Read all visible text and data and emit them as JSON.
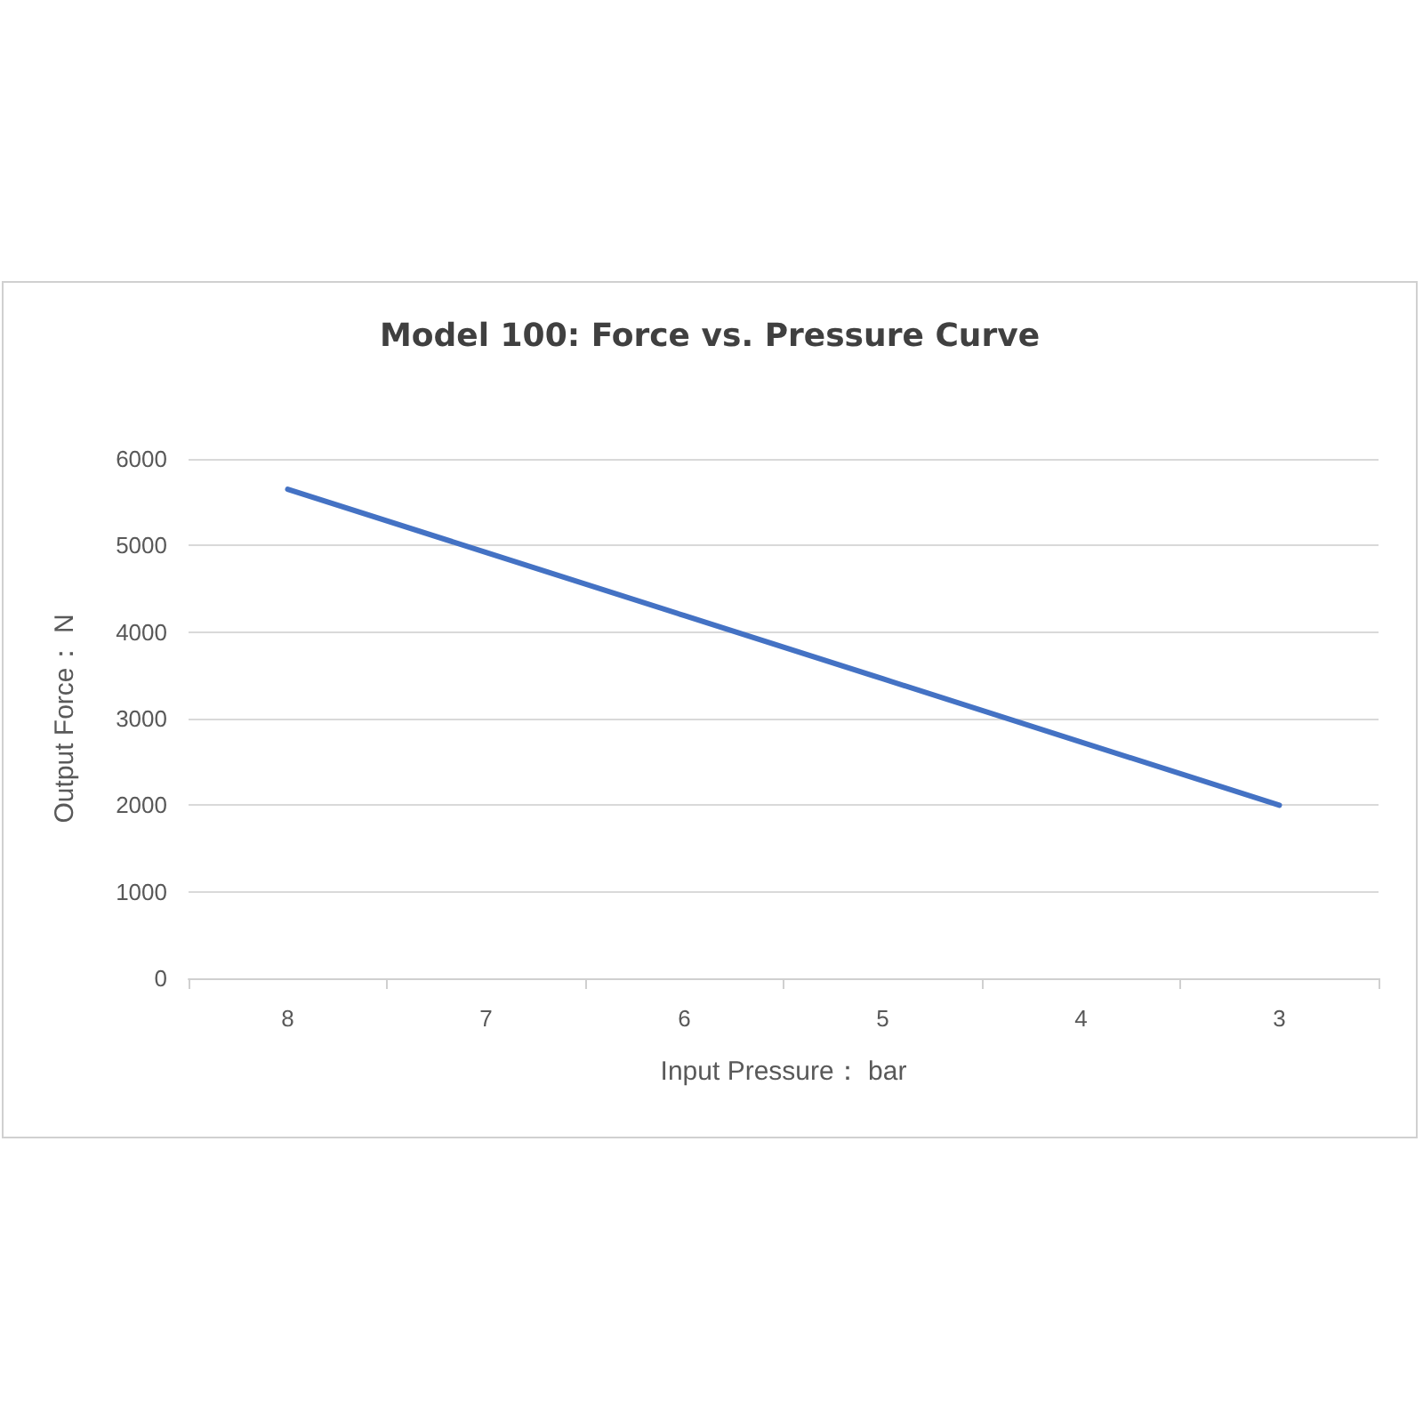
{
  "chart_data": {
    "type": "line",
    "title": "Model 100: Force vs. Pressure Curve",
    "xlabel": "Input Pressure： bar",
    "ylabel": "Output Force： N",
    "categories": [
      "8",
      "7",
      "6",
      "5",
      "4",
      "3"
    ],
    "series": [
      {
        "color": "#4472c4",
        "values": [
          5650,
          4920,
          4190,
          3460,
          2730,
          2000
        ]
      }
    ],
    "ylim": [
      0,
      6000
    ],
    "yticks": [
      0,
      1000,
      2000,
      3000,
      4000,
      5000,
      6000
    ],
    "grid": "y",
    "marker": "none",
    "line_style": "solid"
  }
}
